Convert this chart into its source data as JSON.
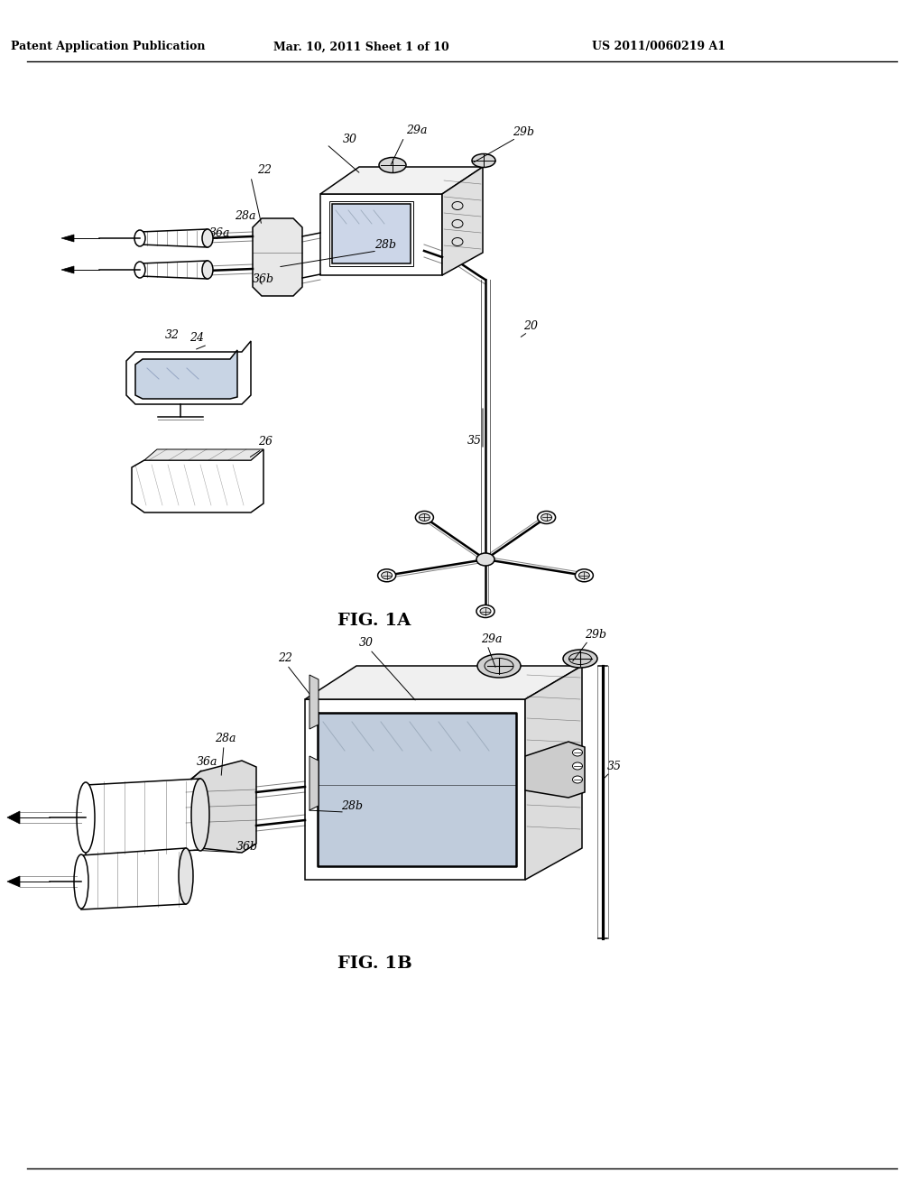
{
  "background_color": "#ffffff",
  "header_text": "Patent Application Publication",
  "header_date": "Mar. 10, 2011 Sheet 1 of 10",
  "header_patent": "US 2011/0060219 A1",
  "fig1a_label": "FIG. 1A",
  "fig1b_label": "FIG. 1B",
  "line_color": "#000000",
  "text_color": "#000000"
}
